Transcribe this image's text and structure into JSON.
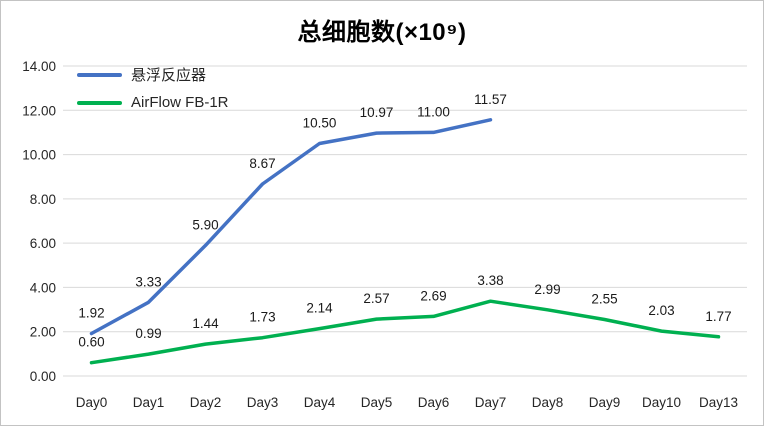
{
  "chart_data": {
    "type": "line",
    "title": "总细胞数(×10⁹)",
    "categories": [
      "Day0",
      "Day1",
      "Day2",
      "Day3",
      "Day4",
      "Day5",
      "Day6",
      "Day7",
      "Day8",
      "Day9",
      "Day10",
      "Day13"
    ],
    "series": [
      {
        "name": "悬浮反应器",
        "color": "#4472C4",
        "values": [
          1.92,
          3.33,
          5.9,
          8.67,
          10.5,
          10.97,
          11.0,
          11.57,
          null,
          null,
          null,
          null
        ]
      },
      {
        "name": "AirFlow FB-1R",
        "color": "#00B050",
        "values": [
          0.6,
          0.99,
          1.44,
          1.73,
          2.14,
          2.57,
          2.69,
          3.38,
          2.99,
          2.55,
          2.03,
          1.77
        ]
      }
    ],
    "xlabel": "",
    "ylabel": "",
    "ylim": [
      0,
      14
    ],
    "y_tick_step": 2,
    "y_tick_decimals": 2,
    "data_label_decimals": 2,
    "grid": true,
    "legend_position": "top-left",
    "colors": {
      "gridline": "#D9D9D9",
      "axis_text": "#262626",
      "data_label": "#1a1a1a",
      "chart_border": "#c3c3c3",
      "background": "#ffffff"
    }
  }
}
